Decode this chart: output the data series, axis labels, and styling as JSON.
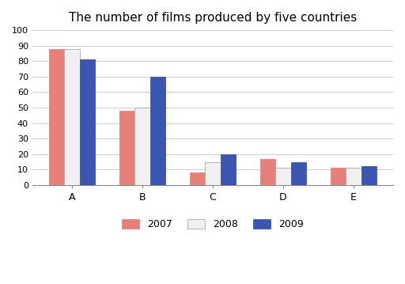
{
  "title": "The number of films produced by five countries",
  "categories": [
    "A",
    "B",
    "C",
    "D",
    "E"
  ],
  "years": [
    "2007",
    "2008",
    "2009"
  ],
  "values": {
    "2007": [
      88,
      48,
      8,
      17,
      11
    ],
    "2008": [
      88,
      50,
      15,
      11,
      11
    ],
    "2009": [
      81,
      70,
      20,
      15,
      12
    ]
  },
  "colors": {
    "2007": "#e8807a",
    "2008": "#f0f0f0",
    "2009": "#3a56b0"
  },
  "bar_edge_colors": {
    "2007": "#e8807a",
    "2008": "#aaaaaa",
    "2009": "#3a56b0"
  },
  "ylim": [
    0,
    100
  ],
  "yticks": [
    0,
    10,
    20,
    30,
    40,
    50,
    60,
    70,
    80,
    90,
    100
  ],
  "background_color": "#ffffff",
  "grid_color": "#cccccc",
  "title_fontsize": 11,
  "bar_width": 0.22,
  "figsize": [
    5.12,
    3.59
  ],
  "dpi": 100
}
